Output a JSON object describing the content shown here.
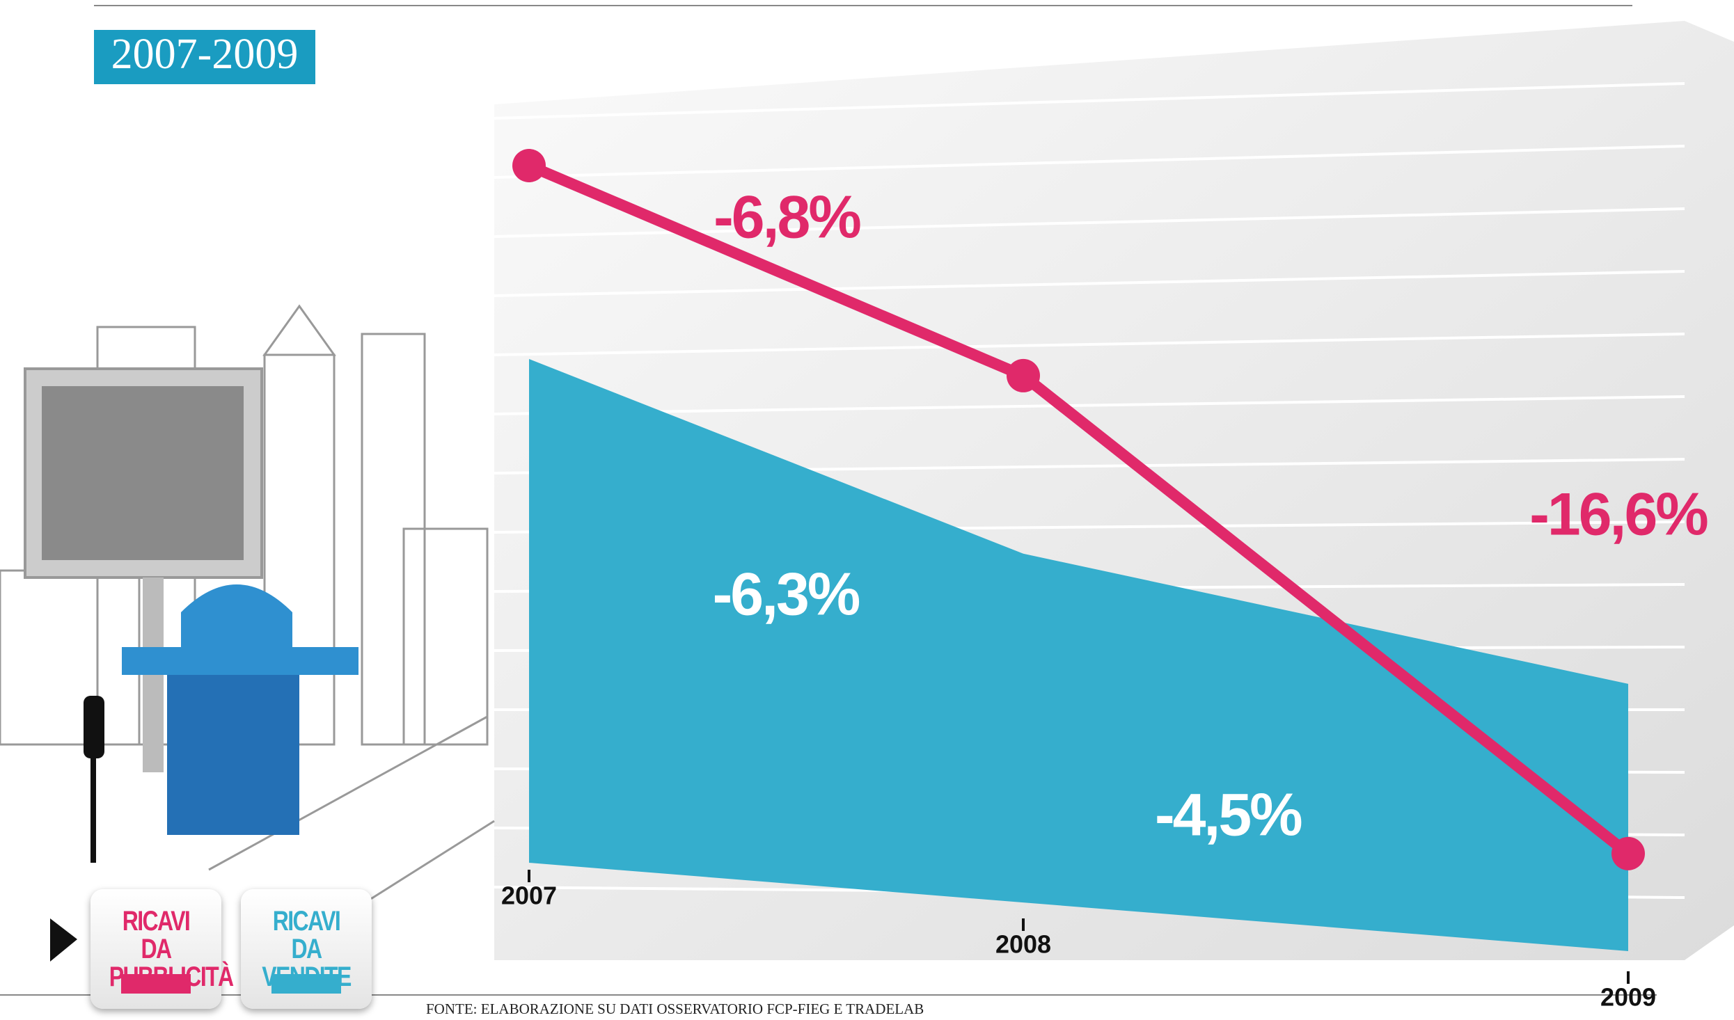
{
  "chart_data": {
    "type": "change-line",
    "title": "2007-2009",
    "categories": [
      "2007",
      "2008",
      "2009"
    ],
    "series": [
      {
        "name": "RICAVI DA PUBBLICITÀ",
        "color": "#e0296a",
        "values": [
          null,
          -6.8,
          -16.6
        ],
        "value_labels": [
          null,
          "-6,8%",
          "-16,6%"
        ]
      },
      {
        "name": "RICAVI DA VENDITE",
        "color": "#35aecd",
        "values": [
          null,
          -6.3,
          -4.5
        ],
        "value_labels": [
          null,
          "-6,3%",
          "-4,5%"
        ]
      }
    ],
    "source": "FONTE: ELABORAZIONE SU DATI OSSERVATORIO FCP-FIEG E TRADELAB"
  }
}
